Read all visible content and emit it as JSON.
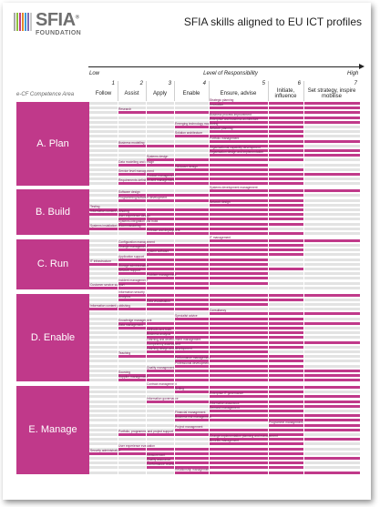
{
  "logo": {
    "name": "SFIA",
    "registered": "®",
    "subtitle": "FOUNDATION",
    "bar_colors": [
      "#a8a8a8",
      "#8fbf3c",
      "#c0398a",
      "#e08a2a",
      "#3f9ad6",
      "#7a6bb5",
      "#c9c9c9"
    ]
  },
  "title": "SFIA skills aligned to EU ICT profiles",
  "axis": {
    "low": "Low",
    "middle": "Level of Responsibility",
    "high": "High"
  },
  "ecf_heading": "e-CF Competence Area",
  "levels": [
    {
      "num": "1",
      "name": "Follow"
    },
    {
      "num": "2",
      "name": "Assist"
    },
    {
      "num": "3",
      "name": "Apply"
    },
    {
      "num": "4",
      "name": "Enable"
    },
    {
      "num": "5",
      "name": "Ensure, advise"
    },
    {
      "num": "6",
      "name": "Initiate, influence"
    },
    {
      "num": "7",
      "name": "Set strategy, inspire mobilise"
    }
  ],
  "chart_data": {
    "type": "bar",
    "accent_color": "#c0398a",
    "categories": [
      {
        "name": "A. Plan",
        "rows": [
          {
            "skill": "Strategic planning",
            "from": 5,
            "to": 7
          },
          {
            "skill": "Innovation",
            "from": 5,
            "to": 7
          },
          {
            "skill": "Research",
            "from": 2,
            "to": 7
          },
          {
            "skill": "Business process improvement",
            "from": 5,
            "to": 7
          },
          {
            "skill": "Enterprise and business architecture",
            "from": 5,
            "to": 7
          },
          {
            "skill": "Emerging technology monitoring",
            "from": 4,
            "to": 6
          },
          {
            "skill": "Network planning",
            "from": 5,
            "to": 6
          },
          {
            "skill": "Solution architecture",
            "from": 4,
            "to": 6
          },
          {
            "skill": "Portfolio management",
            "from": 5,
            "to": 7
          },
          {
            "skill": "Business modelling",
            "from": 2,
            "to": 6
          },
          {
            "skill": "Organisational capability development",
            "from": 5,
            "to": 7
          },
          {
            "skill": "Organisation design and implementation",
            "from": 5,
            "to": 7
          },
          {
            "skill": "Systems design",
            "from": 3,
            "to": 6
          },
          {
            "skill": "Data modelling and design",
            "from": 2,
            "to": 5
          },
          {
            "skill": "Hardware design",
            "from": 4,
            "to": 6
          },
          {
            "skill": "Service level management",
            "from": 2,
            "to": 7
          },
          {
            "skill": "Product management",
            "from": 3,
            "to": 6
          },
          {
            "skill": "Requirements definition and management",
            "from": 2,
            "to": 6
          }
        ]
      },
      {
        "name": "B. Build",
        "rows": [
          {
            "skill": "Systems development management",
            "from": 5,
            "to": 7
          },
          {
            "skill": "Software design",
            "from": 2,
            "to": 6
          },
          {
            "skill": "Programming/software development",
            "from": 2,
            "to": 6
          },
          {
            "skill": "Network design",
            "from": 5,
            "to": 6
          },
          {
            "skill": "Testing",
            "from": 1,
            "to": 6
          },
          {
            "skill": "Information content authoring",
            "from": 1,
            "to": 6
          },
          {
            "skill": "User experience design",
            "from": 2,
            "to": 6
          },
          {
            "skill": "Systems integration and build",
            "from": 2,
            "to": 6
          },
          {
            "skill": "Systems installation/decommissioning",
            "from": 1,
            "to": 5
          },
          {
            "skill": "Release and deployment",
            "from": 3,
            "to": 6
          }
        ]
      },
      {
        "name": "C. Run",
        "rows": [
          {
            "skill": "IT management",
            "from": 5,
            "to": 7
          },
          {
            "skill": "Configuration management",
            "from": 2,
            "to": 6
          },
          {
            "skill": "Change management",
            "from": 2,
            "to": 6
          },
          {
            "skill": "System software",
            "from": 3,
            "to": 6
          },
          {
            "skill": "Application support",
            "from": 2,
            "to": 5
          },
          {
            "skill": "IT infrastructure",
            "from": 1,
            "to": 5
          },
          {
            "skill": "Storage administration",
            "from": 2,
            "to": 6
          },
          {
            "skill": "Network support",
            "from": 2,
            "to": 5
          },
          {
            "skill": "Problem management",
            "from": 3,
            "to": 5
          },
          {
            "skill": "Incident management",
            "from": 2,
            "to": 5
          },
          {
            "skill": "Customer service support",
            "from": 1,
            "to": 4
          }
        ]
      },
      {
        "name": "D. Enable",
        "rows": [
          {
            "skill": "Information security",
            "from": 2,
            "to": 7
          },
          {
            "skill": "Analytics",
            "from": 2,
            "to": 6
          },
          {
            "skill": "Data visualisation",
            "from": 3,
            "to": 5
          },
          {
            "skill": "Information content publishing",
            "from": 1,
            "to": 4
          },
          {
            "skill": "Consultancy",
            "from": 5,
            "to": 7
          },
          {
            "skill": "Specialist advice",
            "from": 4,
            "to": 6
          },
          {
            "skill": "Knowledge management",
            "from": 2,
            "to": 7
          },
          {
            "skill": "Data management",
            "from": 2,
            "to": 6
          },
          {
            "skill": "Methods and tools",
            "from": 3,
            "to": 6
          },
          {
            "skill": "Business analysis",
            "from": 3,
            "to": 6
          },
          {
            "skill": "Learning and development management",
            "from": 3,
            "to": 7
          },
          {
            "skill": "Competency assessment",
            "from": 3,
            "to": 6
          },
          {
            "skill": "Learning design and development",
            "from": 3,
            "to": 5
          },
          {
            "skill": "Teaching",
            "from": 2,
            "to": 6
          },
          {
            "skill": "Performance management",
            "from": 4,
            "to": 6
          },
          {
            "skill": "Professional development",
            "from": 4,
            "to": 6
          },
          {
            "skill": "Quality management",
            "from": 3,
            "to": 7
          },
          {
            "skill": "Sourcing",
            "from": 2,
            "to": 7
          },
          {
            "skill": "Supplier management",
            "from": 2,
            "to": 7
          }
        ]
      },
      {
        "name": "E. Manage",
        "rows": [
          {
            "skill": "Contract management",
            "from": 3,
            "to": 7
          },
          {
            "skill": "Selling",
            "from": 4,
            "to": 6
          },
          {
            "skill": "Enterprise IT governance",
            "from": 5,
            "to": 7
          },
          {
            "skill": "Information governance",
            "from": 3,
            "to": 7
          },
          {
            "skill": "Information assurance",
            "from": 5,
            "to": 7
          },
          {
            "skill": "Demand management",
            "from": 5,
            "to": 6
          },
          {
            "skill": "Financial management",
            "from": 4,
            "to": 7
          },
          {
            "skill": "Business risk management",
            "from": 4,
            "to": 7
          },
          {
            "skill": "Programme management",
            "from": 6,
            "to": 7
          },
          {
            "skill": "Project management",
            "from": 4,
            "to": 7
          },
          {
            "skill": "Portfolio, programme and project support",
            "from": 2,
            "to": 6
          },
          {
            "skill": "Change implementation planning and management",
            "from": 5,
            "to": 7
          },
          {
            "skill": "Benefits management",
            "from": 5,
            "to": 6
          },
          {
            "skill": "User experience evaluation",
            "from": 2,
            "to": 6
          },
          {
            "skill": "Security administration",
            "from": 1,
            "to": 6
          },
          {
            "skill": "Measurement",
            "from": 3,
            "to": 7
          },
          {
            "skill": "Quality assurance",
            "from": 3,
            "to": 6
          },
          {
            "skill": "Conformance review",
            "from": 3,
            "to": 6
          },
          {
            "skill": "Relationship management",
            "from": 4,
            "to": 7
          }
        ]
      }
    ]
  }
}
